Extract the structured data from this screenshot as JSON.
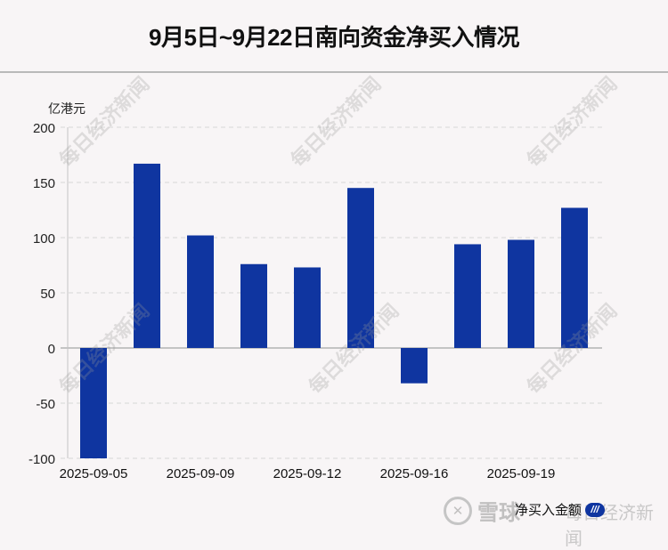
{
  "header": {
    "title": "9月5日~9月22日南向资金净买入情况"
  },
  "chart_data": {
    "type": "bar",
    "title": "9月5日~9月22日南向资金净买入情况",
    "xlabel": "",
    "ylabel": "亿港元",
    "ylim": [
      -100,
      200
    ],
    "yticks": [
      200,
      150,
      100,
      50,
      0,
      -50,
      -100
    ],
    "grid": true,
    "legend_position": "bottom-right",
    "categories": [
      "2025-09-05",
      "",
      "2025-09-09",
      "",
      "2025-09-12",
      "",
      "2025-09-16",
      "",
      "2025-09-19",
      ""
    ],
    "xtick_labels": [
      "2025-09-05",
      "2025-09-09",
      "2025-09-12",
      "2025-09-16",
      "2025-09-19"
    ],
    "series": [
      {
        "name": "净买入金额",
        "color": "#0f35a0",
        "values": [
          -100,
          167,
          102,
          76,
          73,
          145,
          -32,
          94,
          98,
          127
        ]
      }
    ]
  },
  "legend": {
    "label": "净买入金额",
    "swatch_text": "///"
  },
  "watermarks": {
    "source": "每日经济新闻",
    "platform": "雪球"
  },
  "colors": {
    "bar": "#0f35a0",
    "background": "#f8f5f6",
    "grid": "#d6d6d6",
    "axis": "#c4c4c4"
  }
}
